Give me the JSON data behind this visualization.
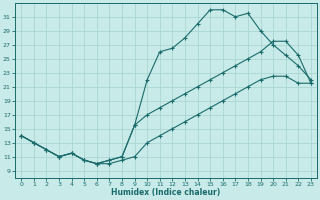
{
  "bg_color": "#c8eae8",
  "grid_color": "#a8d4d0",
  "line_color": "#1a6b6b",
  "xlabel": "Humidex (Indice chaleur)",
  "xlim": [
    -0.5,
    23.5
  ],
  "ylim": [
    8.0,
    33.0
  ],
  "xticks": [
    0,
    1,
    2,
    3,
    4,
    5,
    6,
    7,
    8,
    9,
    10,
    11,
    12,
    13,
    14,
    15,
    16,
    17,
    18,
    19,
    20,
    21,
    22,
    23
  ],
  "yticks": [
    9,
    11,
    13,
    15,
    17,
    19,
    21,
    23,
    25,
    27,
    29,
    31
  ],
  "upper_x": [
    0,
    1,
    2,
    3,
    4,
    5,
    6,
    7,
    8,
    9,
    10,
    11,
    12,
    13,
    14,
    15,
    16,
    17,
    18,
    19,
    20,
    21,
    22,
    23
  ],
  "upper_y": [
    14,
    13,
    12,
    11,
    11.5,
    10.5,
    10,
    10.5,
    11,
    15.5,
    22,
    26,
    26.5,
    28,
    30,
    32,
    32,
    31,
    31.5,
    29,
    27,
    25.5,
    24,
    22
  ],
  "mid_x": [
    0,
    1,
    2,
    3,
    4,
    5,
    6,
    7,
    8,
    9,
    10,
    11,
    12,
    13,
    14,
    15,
    16,
    17,
    18,
    19,
    20,
    21,
    22,
    23
  ],
  "mid_y": [
    14,
    13,
    12,
    11,
    11.5,
    10.5,
    10,
    10.5,
    11,
    15.5,
    17,
    18,
    19,
    20,
    21,
    22,
    23,
    24,
    25,
    26,
    27.5,
    27.5,
    25.5,
    21.5
  ],
  "lower_x": [
    0,
    1,
    2,
    3,
    4,
    5,
    6,
    7,
    8,
    9,
    10,
    11,
    12,
    13,
    14,
    15,
    16,
    17,
    18,
    19,
    20,
    21,
    22,
    23
  ],
  "lower_y": [
    14,
    13,
    12,
    11,
    11.5,
    10.5,
    10,
    10,
    10.5,
    11,
    13,
    14,
    15,
    16,
    17,
    18,
    19,
    20,
    21,
    22,
    22.5,
    22.5,
    21.5,
    21.5
  ]
}
